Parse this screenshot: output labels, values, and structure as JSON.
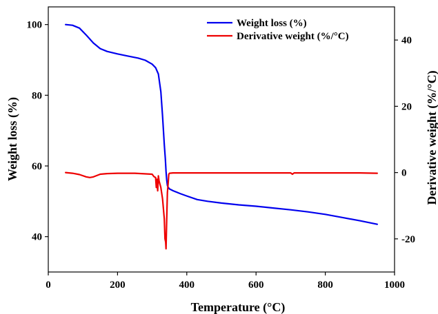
{
  "chart_data": {
    "type": "line",
    "xlabel": "Temperature (°C)",
    "ylabel_left": "Weight  loss (%)",
    "ylabel_right": "Derivative weight (%/°C)",
    "xlim": [
      0,
      1000
    ],
    "ylim_left": [
      30,
      105
    ],
    "ylim_right": [
      -30,
      50
    ],
    "xticks": [
      "0",
      "200",
      "400",
      "600",
      "800",
      "1000"
    ],
    "yticks_left": [
      "40",
      "60",
      "80",
      "100"
    ],
    "yticks_right": [
      "-20",
      "0",
      "20",
      "40"
    ],
    "grid": false,
    "legend_position": "top-right",
    "series": [
      {
        "name": "Weight  loss (%)",
        "axis": "left",
        "color": "#0000ee",
        "x": [
          50,
          70,
          90,
          110,
          130,
          150,
          170,
          200,
          230,
          260,
          280,
          300,
          310,
          318,
          325,
          330,
          335,
          338,
          340,
          342,
          344,
          346,
          350,
          360,
          380,
          400,
          430,
          460,
          500,
          550,
          600,
          650,
          700,
          750,
          800,
          850,
          900,
          950
        ],
        "y": [
          100,
          99.8,
          99,
          97,
          94.8,
          93.2,
          92.4,
          91.7,
          91.1,
          90.5,
          89.9,
          88.8,
          87.8,
          86,
          81,
          74,
          66,
          62,
          58.5,
          56,
          54.5,
          54,
          53.5,
          53,
          52.2,
          51.5,
          50.5,
          50,
          49.5,
          49,
          48.6,
          48.1,
          47.6,
          47,
          46.3,
          45.4,
          44.5,
          43.5
        ]
      },
      {
        "name": "Derivative weight (%/°C)",
        "axis": "right",
        "color": "#ee0000",
        "x": [
          50,
          70,
          90,
          110,
          120,
          130,
          150,
          170,
          200,
          250,
          300,
          305,
          310,
          312,
          314,
          316,
          318,
          320,
          325,
          330,
          335,
          337,
          339,
          340,
          342,
          344,
          346,
          348,
          350,
          360,
          400,
          500,
          600,
          700,
          705,
          710,
          800,
          900,
          950
        ],
        "y": [
          0,
          -0.2,
          -0.6,
          -1.3,
          -1.5,
          -1.3,
          -0.5,
          -0.3,
          -0.2,
          -0.2,
          -0.5,
          -1.2,
          -1.5,
          -4.5,
          -2,
          -5.5,
          -1,
          -2.5,
          -4.5,
          -8,
          -14,
          -20,
          -21,
          -23,
          -14,
          -6,
          -3.5,
          -0.5,
          -0.2,
          -0.1,
          -0.1,
          -0.1,
          -0.1,
          -0.1,
          -0.5,
          -0.1,
          -0.1,
          -0.1,
          -0.2
        ]
      }
    ]
  }
}
